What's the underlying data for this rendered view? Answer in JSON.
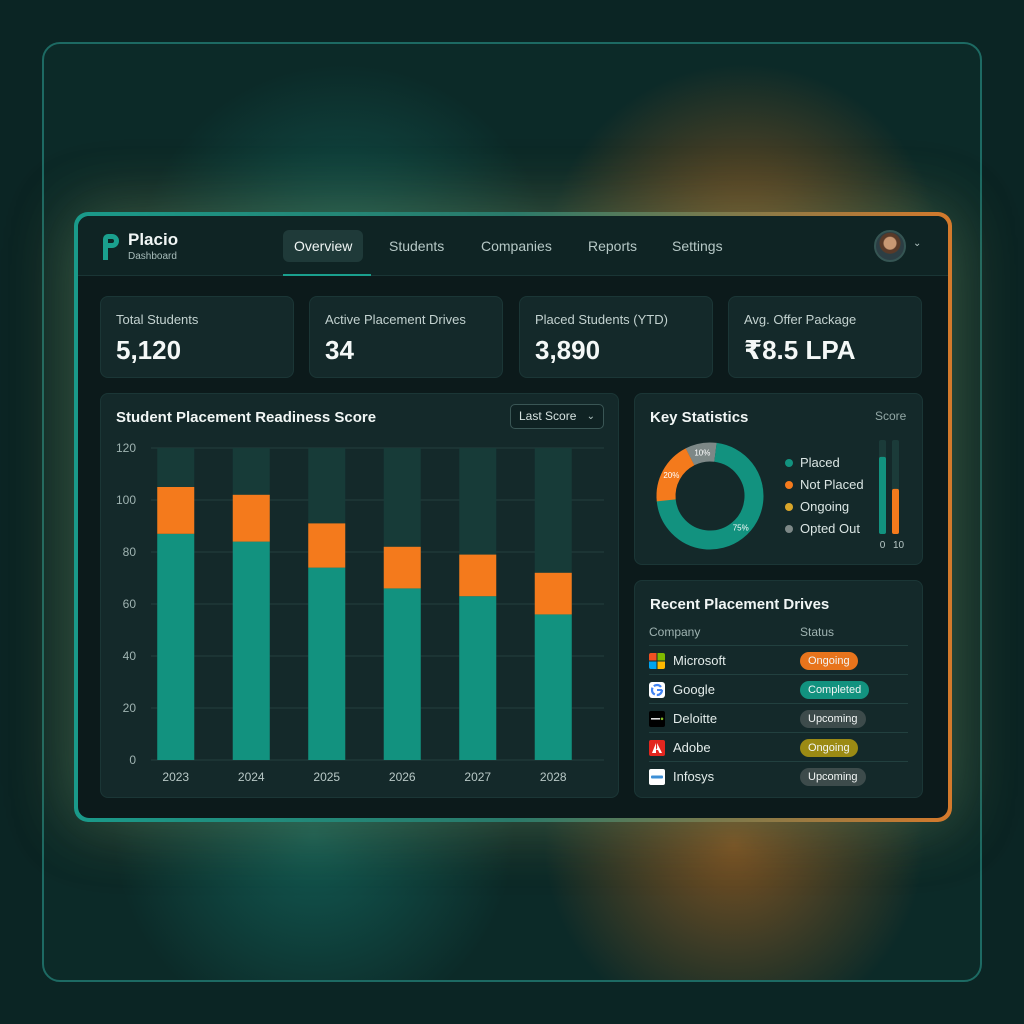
{
  "brand": {
    "name": "Placio",
    "subtitle": "Dashboard"
  },
  "nav": {
    "tabs": [
      {
        "label": "Overview",
        "active": true
      },
      {
        "label": "Students",
        "active": false
      },
      {
        "label": "Companies",
        "active": false
      },
      {
        "label": "Reports",
        "active": false
      },
      {
        "label": "Settings",
        "active": false
      }
    ]
  },
  "stats": [
    {
      "label": "Total Students",
      "value": "5,120"
    },
    {
      "label": "Active Placement Drives",
      "value": "34"
    },
    {
      "label": "Placed Students (YTD)",
      "value": "3,890"
    },
    {
      "label": "Avg. Offer Package",
      "value": "₹8.5 LPA"
    }
  ],
  "readiness": {
    "title": "Student Placement Readiness Score",
    "dropdown": "Last Score"
  },
  "chart_data": [
    {
      "type": "bar",
      "stacked": true,
      "title": "Student Placement Readiness Score",
      "categories": [
        "2023",
        "2024",
        "2025",
        "2026",
        "2027",
        "2028"
      ],
      "series": [
        {
          "color": "#12927f",
          "values": [
            87,
            84,
            74,
            66,
            63,
            56
          ]
        },
        {
          "color": "#f47a1c",
          "values": [
            18,
            18,
            17,
            16,
            16,
            16
          ]
        }
      ],
      "background_bar_max": 120,
      "ylim": [
        0,
        120
      ],
      "yticks": [
        0,
        20,
        40,
        60,
        80,
        100,
        120
      ],
      "grid": true
    },
    {
      "type": "pie",
      "donut": true,
      "title": "Key Statistics",
      "labels": [
        "Placed",
        "Not Placed",
        "Ongoing",
        "Opted Out"
      ],
      "values": [
        75,
        20,
        0,
        10
      ],
      "slice_labels": [
        "75%",
        "20%",
        "",
        "10%"
      ],
      "colors": [
        "#12927f",
        "#f47a1c",
        "#d9a62a",
        "#7d8887"
      ],
      "legend_position": "right"
    },
    {
      "type": "bar",
      "title": "Score",
      "categories": [
        "0",
        "10"
      ],
      "values": [
        82,
        48
      ],
      "colors": [
        "#12927f",
        "#f47a1c"
      ],
      "ylim": [
        0,
        100
      ]
    }
  ],
  "key_stats": {
    "title": "Key Statistics",
    "score_label": "Score"
  },
  "drives": {
    "title": "Recent Placement Drives",
    "columns": [
      "Company",
      "Status"
    ],
    "rows": [
      {
        "company": "Microsoft",
        "status": "Ongoing",
        "status_color": "#e8741c",
        "logo": "microsoft-logo"
      },
      {
        "company": "Google",
        "status": "Completed",
        "status_color": "#12927f",
        "logo": "google-logo"
      },
      {
        "company": "Deloitte",
        "status": "Upcoming",
        "status_color": "#3d4b4b",
        "logo": "deloitte-logo"
      },
      {
        "company": "Adobe",
        "status": "Ongoing",
        "status_color": "#9b8a14",
        "logo": "adobe-logo"
      },
      {
        "company": "Infosys",
        "status": "Upcoming",
        "status_color": "#3d4b4b",
        "logo": "infosys-logo"
      }
    ]
  }
}
